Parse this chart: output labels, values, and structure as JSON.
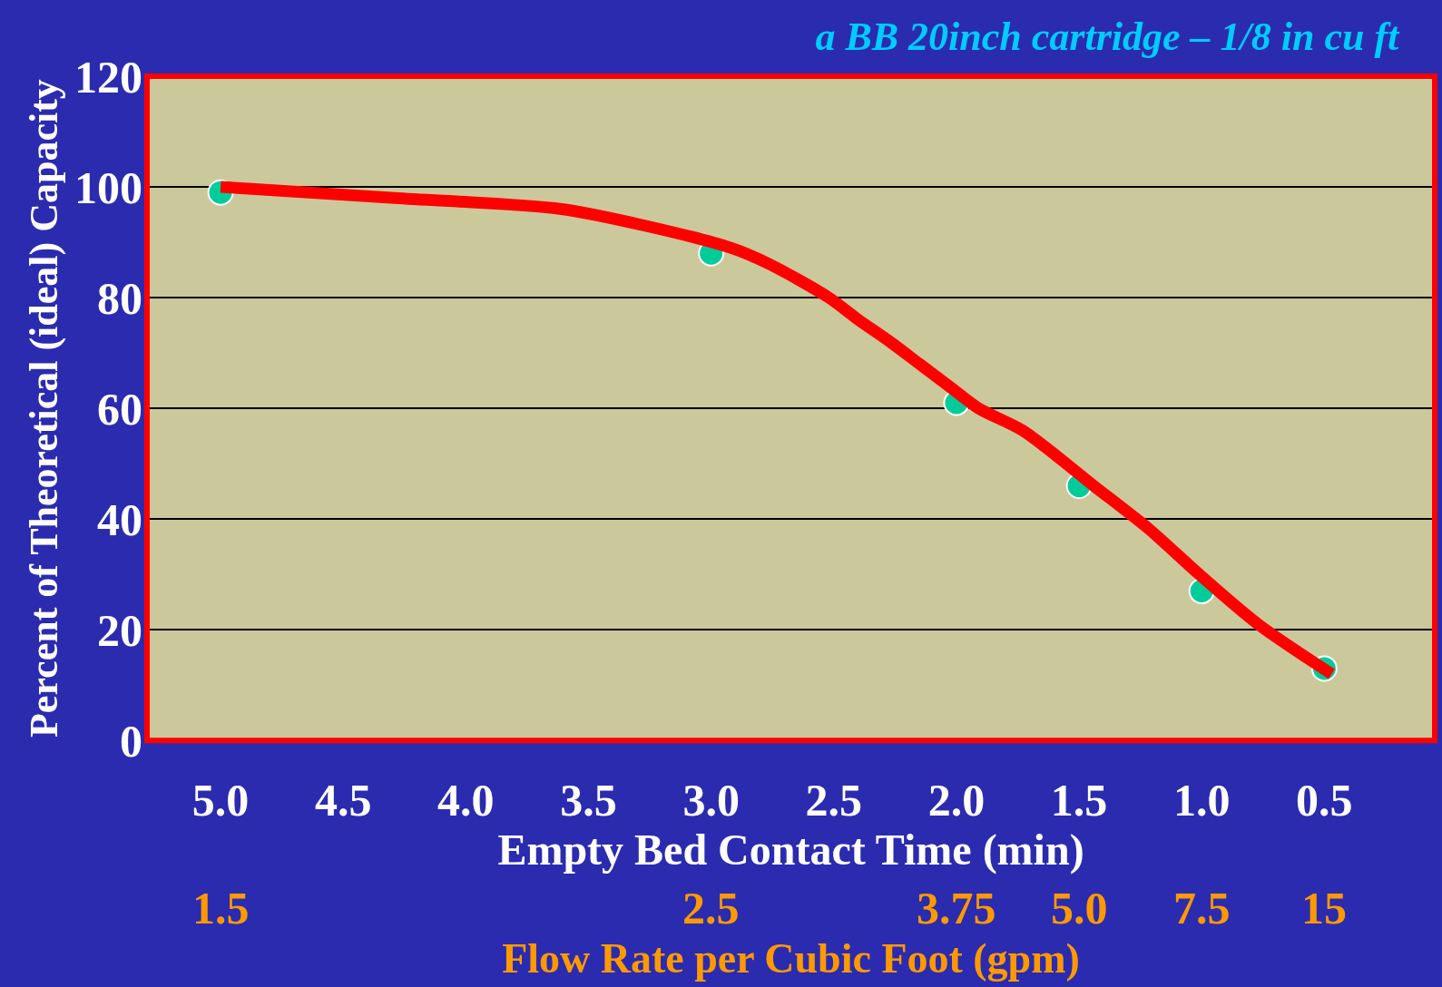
{
  "chart_data": {
    "type": "scatter",
    "title": "a BB 20inch cartridge – 1/8 in cu ft",
    "xlabel": "Empty Bed Contact Time (min)",
    "x2label": "Flow Rate per Cubic Foot (gpm)",
    "ylabel": "Percent of Theoretical (ideal) Capacity",
    "x": [
      5.0,
      3.0,
      2.0,
      1.5,
      1.0,
      0.5
    ],
    "series": [
      {
        "color": "#00cc99",
        "values": [
          99,
          88,
          61,
          46,
          27,
          13
        ]
      },
      {
        "type": "line",
        "color": "#ff0000",
        "marker": "none",
        "x": [
          5.0,
          4.29,
          3.61,
          3.27,
          2.92,
          2.76,
          2.52,
          2.4,
          2.27,
          2.15,
          2.03,
          1.91,
          1.73,
          1.44,
          1.21,
          1.01,
          0.77,
          0.47
        ],
        "values": [
          100,
          98,
          96,
          93,
          89,
          86,
          80,
          76,
          72,
          68,
          64,
          60,
          56,
          46,
          38,
          30,
          21,
          12
        ]
      }
    ],
    "xlim": [
      5.3,
      0.05
    ],
    "xticks": [
      {
        "value": 5,
        "label": "5.0"
      },
      4.5,
      {
        "value": 4,
        "label": "4.0"
      },
      3.5,
      {
        "value": 3,
        "label": "3.0"
      },
      2.5,
      {
        "value": 2,
        "label": "2.0"
      },
      1.5,
      {
        "value": 1,
        "label": "1.0"
      },
      0.5
    ],
    "annotations": [
      "1.5",
      "2.5",
      "3.75",
      "5.0",
      "7.5",
      "15"
    ],
    "ylim": [
      0,
      120
    ],
    "yticks": [
      0,
      20,
      40,
      60,
      80,
      100,
      120
    ],
    "grid": "y",
    "legend": false,
    "marker": "circle",
    "line_style": "solid"
  }
}
